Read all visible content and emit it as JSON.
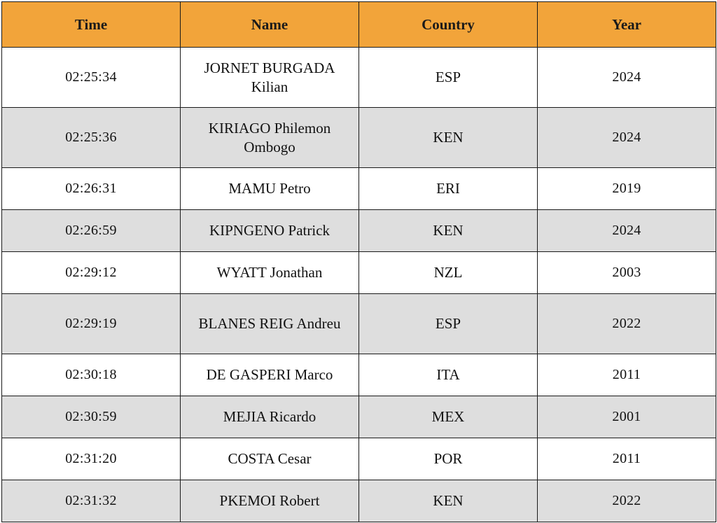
{
  "table": {
    "headers": [
      "Time",
      "Name",
      "Country",
      "Year"
    ],
    "rows": [
      {
        "time": "02:25:34",
        "name": "JORNET BURGADA Kilian",
        "country": "ESP",
        "year": "2024"
      },
      {
        "time": "02:25:36",
        "name": "KIRIAGO Philemon Ombogo",
        "country": "KEN",
        "year": "2024"
      },
      {
        "time": "02:26:31",
        "name": "MAMU Petro",
        "country": "ERI",
        "year": "2019"
      },
      {
        "time": "02:26:59",
        "name": "KIPNGENO Patrick",
        "country": "KEN",
        "year": "2024"
      },
      {
        "time": "02:29:12",
        "name": "WYATT Jonathan",
        "country": "NZL",
        "year": "2003"
      },
      {
        "time": "02:29:19",
        "name": "BLANES REIG Andreu",
        "country": "ESP",
        "year": "2022"
      },
      {
        "time": "02:30:18",
        "name": "DE GASPERI Marco",
        "country": "ITA",
        "year": "2011"
      },
      {
        "time": "02:30:59",
        "name": "MEJIA Ricardo",
        "country": "MEX",
        "year": "2001"
      },
      {
        "time": "02:31:20",
        "name": "COSTA Cesar",
        "country": "POR",
        "year": "2011"
      },
      {
        "time": "02:31:32",
        "name": "PKEMOI Robert",
        "country": "KEN",
        "year": "2022"
      }
    ]
  },
  "colors": {
    "header_bg": "#f2a43a",
    "row_alt_bg": "#dedede",
    "row_bg": "#ffffff",
    "border": "#1a1a1a"
  }
}
